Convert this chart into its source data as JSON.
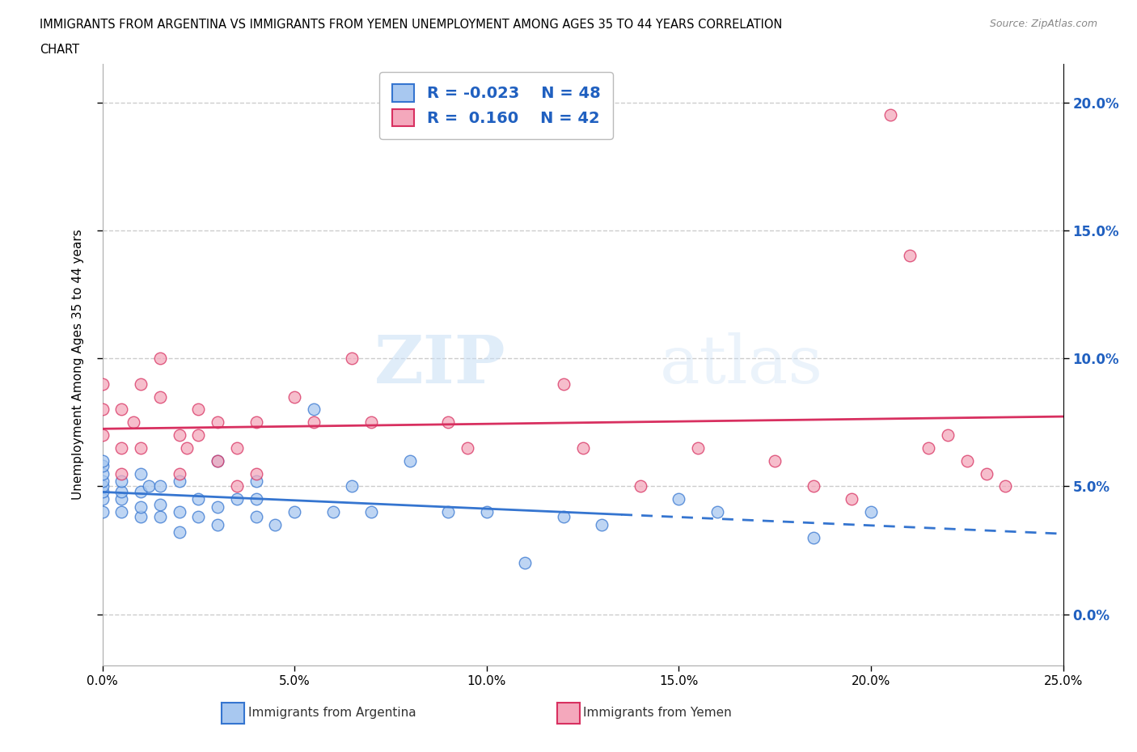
{
  "title_line1": "IMMIGRANTS FROM ARGENTINA VS IMMIGRANTS FROM YEMEN UNEMPLOYMENT AMONG AGES 35 TO 44 YEARS CORRELATION",
  "title_line2": "CHART",
  "source": "Source: ZipAtlas.com",
  "ylabel": "Unemployment Among Ages 35 to 44 years",
  "xlim": [
    0.0,
    0.25
  ],
  "ylim": [
    -0.02,
    0.215
  ],
  "yticks": [
    0.0,
    0.05,
    0.1,
    0.15,
    0.2
  ],
  "xticks": [
    0.0,
    0.05,
    0.1,
    0.15,
    0.2,
    0.25
  ],
  "legend_r1": "R = -0.023",
  "legend_n1": "N = 48",
  "legend_r2": "R =  0.160",
  "legend_n2": "N = 42",
  "color_argentina": "#a8c8f0",
  "color_yemen": "#f4a8bc",
  "color_line_argentina": "#3575d0",
  "color_line_yemen": "#d83060",
  "watermark_zip": "ZIP",
  "watermark_atlas": "atlas",
  "argentina_x": [
    0.0,
    0.0,
    0.0,
    0.0,
    0.0,
    0.0,
    0.0,
    0.0,
    0.005,
    0.005,
    0.005,
    0.005,
    0.01,
    0.01,
    0.01,
    0.01,
    0.012,
    0.015,
    0.015,
    0.015,
    0.02,
    0.02,
    0.02,
    0.025,
    0.025,
    0.03,
    0.03,
    0.03,
    0.035,
    0.04,
    0.04,
    0.04,
    0.045,
    0.05,
    0.055,
    0.06,
    0.065,
    0.07,
    0.08,
    0.09,
    0.1,
    0.11,
    0.12,
    0.13,
    0.15,
    0.16,
    0.185,
    0.2
  ],
  "argentina_y": [
    0.04,
    0.045,
    0.048,
    0.05,
    0.052,
    0.055,
    0.058,
    0.06,
    0.04,
    0.045,
    0.048,
    0.052,
    0.038,
    0.042,
    0.048,
    0.055,
    0.05,
    0.038,
    0.043,
    0.05,
    0.032,
    0.04,
    0.052,
    0.038,
    0.045,
    0.035,
    0.042,
    0.06,
    0.045,
    0.038,
    0.045,
    0.052,
    0.035,
    0.04,
    0.08,
    0.04,
    0.05,
    0.04,
    0.06,
    0.04,
    0.04,
    0.02,
    0.038,
    0.035,
    0.045,
    0.04,
    0.03,
    0.04
  ],
  "yemen_x": [
    0.0,
    0.0,
    0.0,
    0.005,
    0.005,
    0.005,
    0.008,
    0.01,
    0.01,
    0.015,
    0.015,
    0.02,
    0.02,
    0.022,
    0.025,
    0.025,
    0.03,
    0.03,
    0.035,
    0.035,
    0.04,
    0.04,
    0.05,
    0.055,
    0.065,
    0.07,
    0.09,
    0.095,
    0.12,
    0.125,
    0.14,
    0.155,
    0.175,
    0.185,
    0.195,
    0.205,
    0.21,
    0.215,
    0.22,
    0.225,
    0.23,
    0.235
  ],
  "yemen_y": [
    0.07,
    0.08,
    0.09,
    0.055,
    0.065,
    0.08,
    0.075,
    0.065,
    0.09,
    0.085,
    0.1,
    0.055,
    0.07,
    0.065,
    0.07,
    0.08,
    0.06,
    0.075,
    0.05,
    0.065,
    0.055,
    0.075,
    0.085,
    0.075,
    0.1,
    0.075,
    0.075,
    0.065,
    0.09,
    0.065,
    0.05,
    0.065,
    0.06,
    0.05,
    0.045,
    0.195,
    0.14,
    0.065,
    0.07,
    0.06,
    0.055,
    0.05
  ]
}
